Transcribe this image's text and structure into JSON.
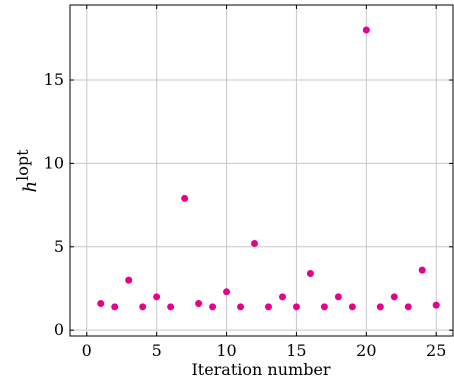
{
  "chart_data": {
    "type": "scatter",
    "title": "",
    "xlabel": "Iteration number",
    "ylabel": {
      "base": "h",
      "superscript": "lopt"
    },
    "xlim": [
      -1.2,
      26.2
    ],
    "ylim": [
      -0.35,
      19.5
    ],
    "xticks": [
      0,
      5,
      10,
      15,
      20,
      25
    ],
    "yticks": [
      0,
      5,
      10,
      15
    ],
    "grid": true,
    "marker_color": "#e6008a",
    "series": [
      {
        "x": [
          1,
          2,
          3,
          4,
          5,
          6,
          7,
          8,
          9,
          10,
          11,
          12,
          13,
          14,
          15,
          16,
          17,
          18,
          19,
          20,
          21,
          22,
          23,
          24,
          25
        ],
        "y": [
          1.6,
          1.4,
          3.0,
          1.4,
          2.0,
          1.4,
          7.9,
          1.6,
          1.4,
          2.3,
          1.4,
          5.2,
          1.4,
          2.0,
          1.4,
          3.4,
          1.4,
          2.0,
          1.4,
          18.0,
          1.4,
          2.0,
          1.4,
          3.6,
          1.5
        ]
      }
    ]
  }
}
